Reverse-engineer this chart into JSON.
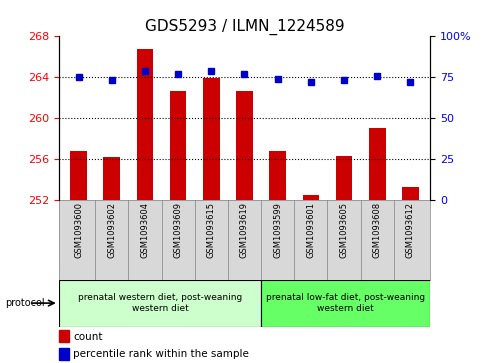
{
  "title": "GDS5293 / ILMN_1224589",
  "samples": [
    "GSM1093600",
    "GSM1093602",
    "GSM1093604",
    "GSM1093609",
    "GSM1093615",
    "GSM1093619",
    "GSM1093599",
    "GSM1093601",
    "GSM1093605",
    "GSM1093608",
    "GSM1093612"
  ],
  "bar_values": [
    256.8,
    256.2,
    266.8,
    262.6,
    263.9,
    262.6,
    256.8,
    252.5,
    256.3,
    259.0,
    253.2
  ],
  "percentile_values": [
    75,
    73,
    79,
    77,
    79,
    77,
    74,
    72,
    73,
    76,
    72
  ],
  "bar_color": "#cc0000",
  "dot_color": "#0000cc",
  "ylim_left": [
    252,
    268
  ],
  "ylim_right": [
    0,
    100
  ],
  "yticks_left": [
    252,
    256,
    260,
    264,
    268
  ],
  "yticks_right": [
    0,
    25,
    50,
    75,
    100
  ],
  "ytick_labels_right": [
    "0",
    "25",
    "50",
    "75",
    "100%"
  ],
  "hlines": [
    256,
    260,
    264
  ],
  "group1_label": "prenatal western diet, post-weaning\nwestern diet",
  "group2_label": "prenatal low-fat diet, post-weaning\nwestern diet",
  "group1_count": 6,
  "group2_count": 5,
  "group1_color": "#ccffcc",
  "group2_color": "#66ff66",
  "protocol_label": "protocol",
  "legend_bar_label": "count",
  "legend_dot_label": "percentile rank within the sample",
  "bar_base": 252,
  "title_fontsize": 11,
  "tick_fontsize": 8
}
